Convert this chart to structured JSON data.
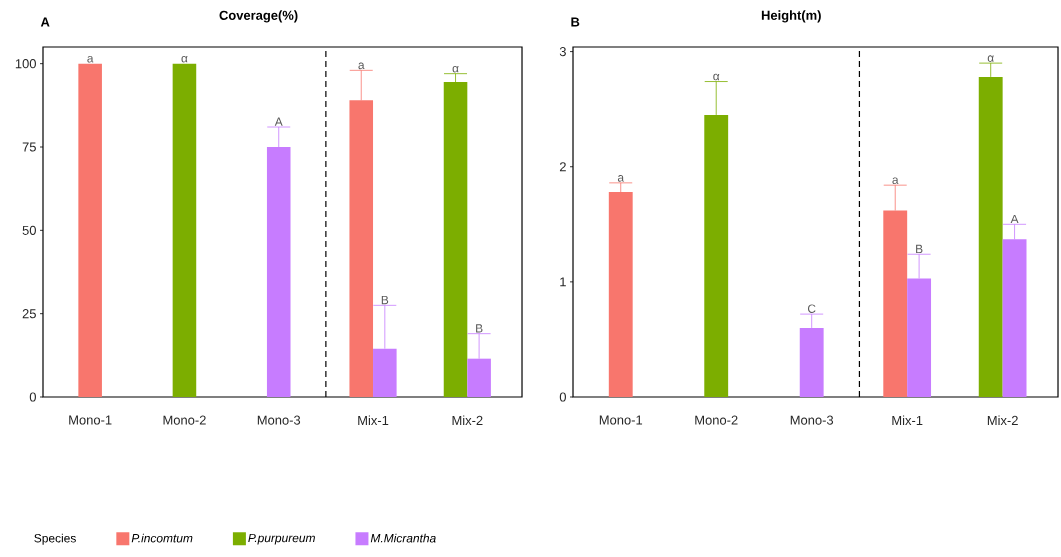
{
  "chart_data": [
    {
      "type": "bar",
      "title": "Coverage(%)",
      "categories": [
        "Mono-1",
        "Mono-2",
        "Mono-3",
        "Mix-1",
        "Mix-2"
      ],
      "series": [
        {
          "name": "P.incomtum",
          "color": "#f8766d",
          "values": [
            100,
            null,
            null,
            89,
            null
          ],
          "errors": [
            null,
            null,
            null,
            9,
            null
          ]
        },
        {
          "name": "P.purpureum",
          "color": "#7cae00",
          "values": [
            null,
            100,
            null,
            null,
            94.5
          ],
          "errors": [
            null,
            null,
            null,
            null,
            2.5
          ]
        },
        {
          "name": "M.Micrantha",
          "color": "#c77cff",
          "values": [
            null,
            null,
            75,
            14.5,
            11.5
          ],
          "errors": [
            null,
            null,
            6,
            13,
            7.5
          ]
        }
      ],
      "ylim": [
        0,
        105
      ],
      "yticks": [
        0,
        25,
        50,
        75,
        100
      ],
      "grid": false,
      "legend": "bottom",
      "legend_title": "Species",
      "annotations": [
        "A",
        {
          "text": "a",
          "x": "Mono-1",
          "y": 100
        },
        {
          "text": "α",
          "x": "Mono-2",
          "y": 100
        },
        {
          "text": "A",
          "x": "Mono-3",
          "y": 81
        },
        {
          "text": "a",
          "x": "Mix-1",
          "y": 98
        },
        {
          "text": "B",
          "x": "Mix-1",
          "y": 27.5
        },
        {
          "text": "α",
          "x": "Mix-2",
          "y": 97
        },
        {
          "text": "B",
          "x": "Mix-2",
          "y": 19
        }
      ]
    },
    {
      "type": "bar",
      "title": "Height(m)",
      "categories": [
        "Mono-1",
        "Mono-2",
        "Mono-3",
        "Mix-1",
        "Mix-2"
      ],
      "series": [
        {
          "color": "#f8766d",
          "values": [
            1.78,
            null,
            null,
            1.62,
            null
          ],
          "errors": [
            0.08,
            null,
            null,
            0.22,
            null
          ]
        },
        {
          "color": "#7cae00",
          "values": [
            null,
            2.45,
            null,
            null,
            2.78
          ],
          "errors": [
            null,
            0.29,
            null,
            null,
            0.12
          ]
        },
        {
          "color": "#c77cff",
          "values": [
            null,
            null,
            0.6,
            1.03,
            1.37
          ],
          "errors": [
            null,
            null,
            0.12,
            0.21,
            0.13
          ]
        }
      ],
      "ylim": [
        0,
        3.04
      ],
      "yticks": [
        0,
        1,
        2,
        3
      ],
      "grid": false,
      "annotations": [
        "B",
        {
          "text": "a",
          "x": "Mono-1",
          "y": 1.86
        },
        {
          "text": "α",
          "x": "Mono-2",
          "y": 2.74
        },
        {
          "text": "C",
          "x": "Mono-3",
          "y": 0.72
        },
        {
          "text": "a",
          "x": "Mix-1",
          "y": 1.84
        },
        {
          "text": "B",
          "x": "Mix-1",
          "y": 1.24
        },
        {
          "text": "α",
          "x": "Mix-2",
          "y": 2.9
        },
        {
          "text": "A",
          "x": "Mix-2",
          "y": 1.5
        }
      ]
    }
  ]
}
